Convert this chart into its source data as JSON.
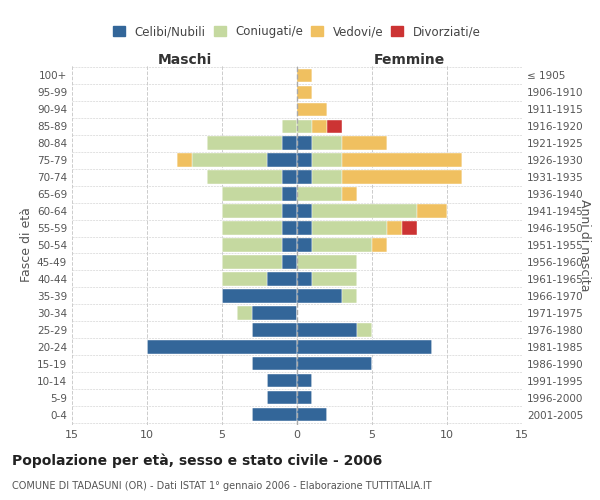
{
  "age_groups": [
    "0-4",
    "5-9",
    "10-14",
    "15-19",
    "20-24",
    "25-29",
    "30-34",
    "35-39",
    "40-44",
    "45-49",
    "50-54",
    "55-59",
    "60-64",
    "65-69",
    "70-74",
    "75-79",
    "80-84",
    "85-89",
    "90-94",
    "95-99",
    "100+"
  ],
  "birth_years": [
    "2001-2005",
    "1996-2000",
    "1991-1995",
    "1986-1990",
    "1981-1985",
    "1976-1980",
    "1971-1975",
    "1966-1970",
    "1961-1965",
    "1956-1960",
    "1951-1955",
    "1946-1950",
    "1941-1945",
    "1936-1940",
    "1931-1935",
    "1926-1930",
    "1921-1925",
    "1916-1920",
    "1911-1915",
    "1906-1910",
    "≤ 1905"
  ],
  "male_celibi": [
    3,
    2,
    2,
    3,
    10,
    3,
    3,
    5,
    2,
    1,
    1,
    1,
    1,
    1,
    1,
    2,
    1,
    0,
    0,
    0,
    0
  ],
  "male_coniugati": [
    0,
    0,
    0,
    0,
    0,
    0,
    1,
    0,
    3,
    4,
    4,
    4,
    4,
    4,
    5,
    5,
    5,
    1,
    0,
    0,
    0
  ],
  "male_vedovi": [
    0,
    0,
    0,
    0,
    0,
    0,
    0,
    0,
    0,
    0,
    0,
    0,
    0,
    0,
    0,
    1,
    0,
    0,
    0,
    0,
    0
  ],
  "male_divorziati": [
    0,
    0,
    0,
    0,
    0,
    0,
    0,
    0,
    0,
    0,
    0,
    0,
    0,
    0,
    0,
    0,
    0,
    0,
    0,
    0,
    0
  ],
  "female_celibi": [
    2,
    1,
    1,
    5,
    9,
    4,
    0,
    3,
    1,
    0,
    1,
    1,
    1,
    0,
    1,
    1,
    1,
    0,
    0,
    0,
    0
  ],
  "female_coniugati": [
    0,
    0,
    0,
    0,
    0,
    1,
    0,
    1,
    3,
    4,
    4,
    5,
    7,
    3,
    2,
    2,
    2,
    1,
    0,
    0,
    0
  ],
  "female_vedovi": [
    0,
    0,
    0,
    0,
    0,
    0,
    0,
    0,
    0,
    0,
    1,
    1,
    2,
    1,
    8,
    8,
    3,
    1,
    2,
    1,
    1
  ],
  "female_divorziati": [
    0,
    0,
    0,
    0,
    0,
    0,
    0,
    0,
    0,
    0,
    0,
    1,
    0,
    0,
    0,
    0,
    0,
    1,
    0,
    0,
    0
  ],
  "color_celibi": "#336699",
  "color_coniugati": "#c5d9a0",
  "color_vedovi": "#f0c060",
  "color_divorziati": "#cc3333",
  "xlim": 15,
  "title": "Popolazione per età, sesso e stato civile - 2006",
  "subtitle": "COMUNE DI TADASUNI (OR) - Dati ISTAT 1° gennaio 2006 - Elaborazione TUTTITALIA.IT",
  "ylabel_left": "Fasce di età",
  "ylabel_right": "Anni di nascita",
  "header_maschi": "Maschi",
  "header_femmine": "Femmine",
  "bg_color": "#ffffff",
  "grid_color": "#cccccc"
}
